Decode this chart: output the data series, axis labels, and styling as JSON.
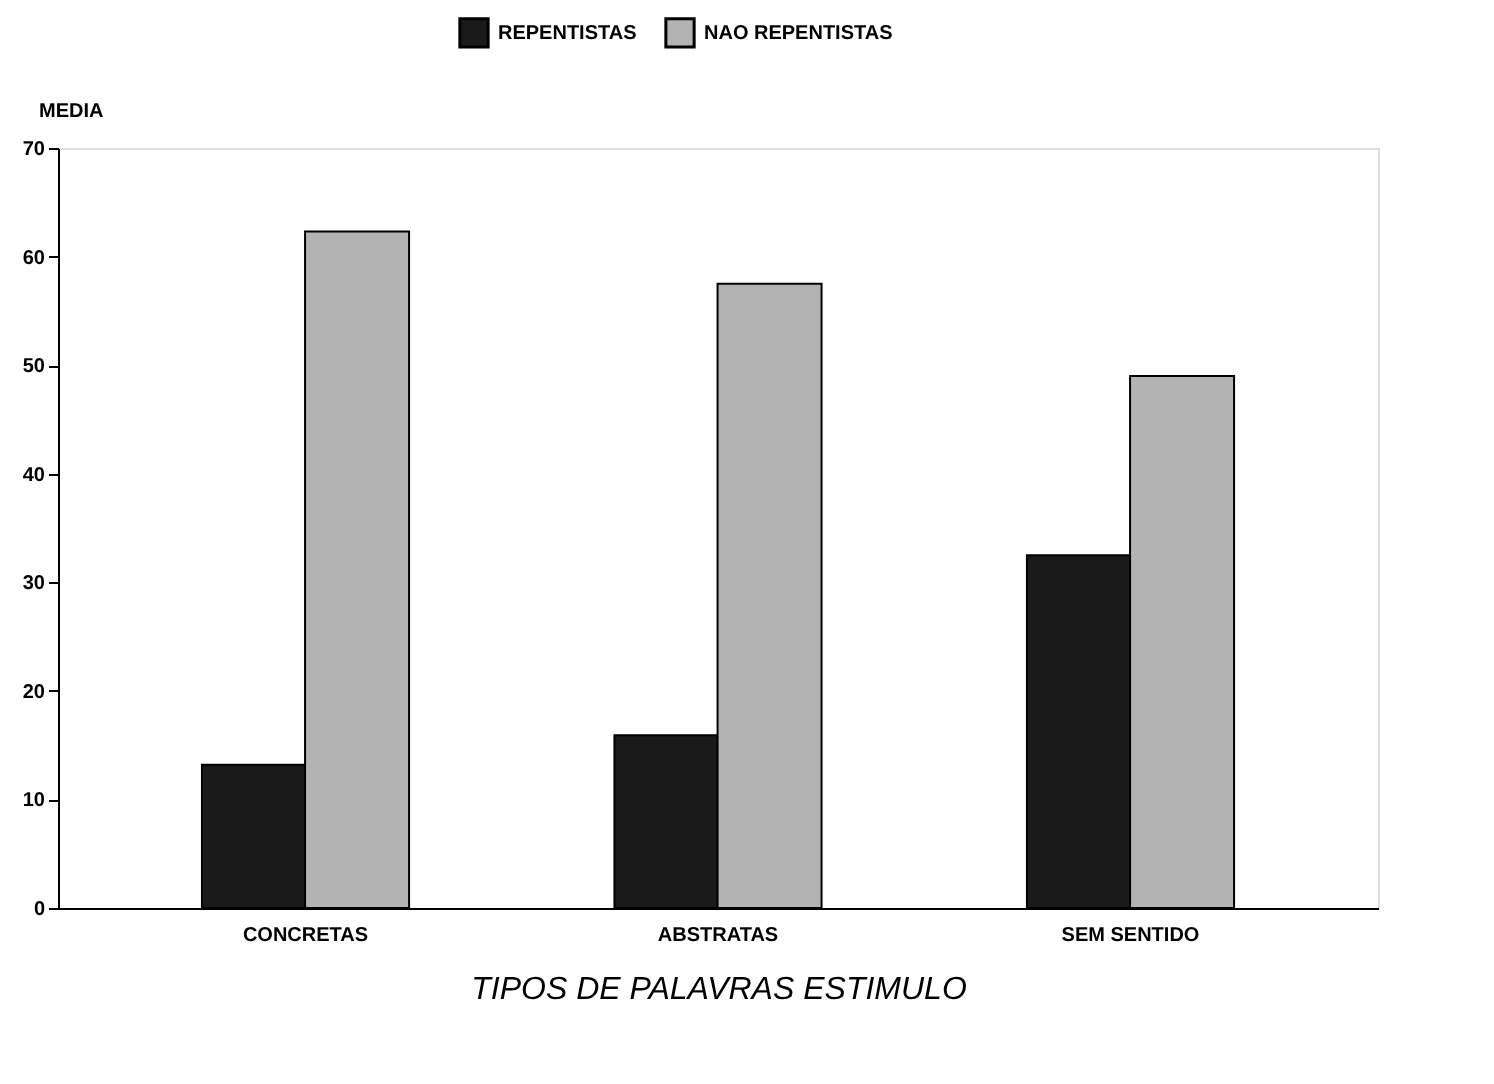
{
  "chart_data": {
    "type": "bar",
    "categories": [
      "CONCRETAS",
      "ABSTRATAS",
      "SEM SENTIDO"
    ],
    "series": [
      {
        "name": "REPENTISTAS",
        "color": "#1a1a1a",
        "values": [
          13.2,
          15.9,
          32.5
        ]
      },
      {
        "name": "NAO REPENTISTAS",
        "color": "#b3b3b3",
        "values": [
          62.3,
          57.5,
          49.0
        ]
      }
    ],
    "xlabel": "TIPOS DE PALAVRAS ESTIMULO",
    "ylabel": "MEDIA",
    "ylim": [
      0,
      70
    ],
    "yticks": [
      0,
      10,
      20,
      30,
      40,
      50,
      60,
      70
    ],
    "grid": false,
    "legend": "top"
  }
}
